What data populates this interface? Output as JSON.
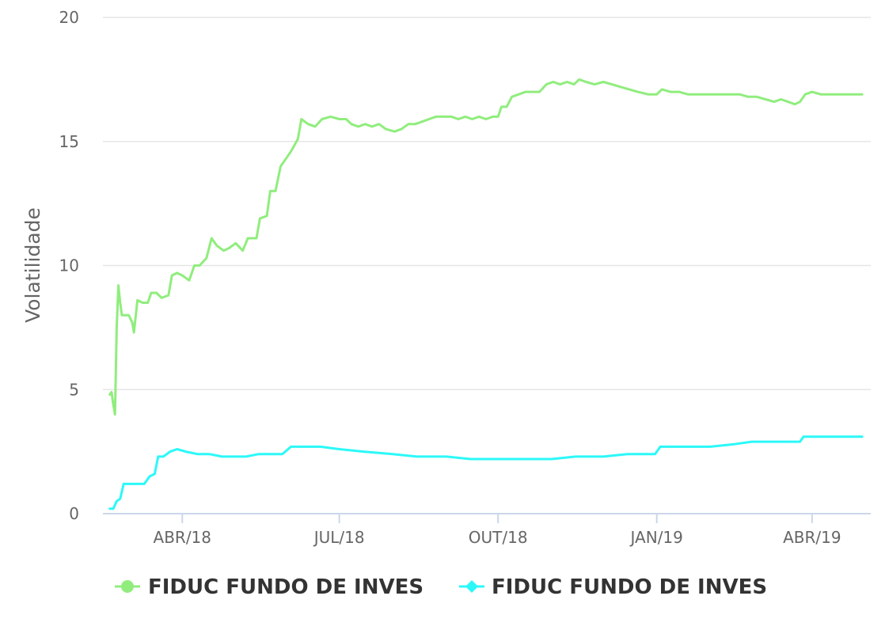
{
  "chart_data": {
    "type": "line",
    "title": "",
    "xlabel": "",
    "ylabel": "Volatilidade",
    "ylim": [
      0,
      20
    ],
    "yticks": [
      0,
      5,
      10,
      15,
      20
    ],
    "xlim": [
      "2018-02-14",
      "2019-05-05"
    ],
    "xticks": [
      {
        "date": "2018-04-01",
        "label": "ABR/18"
      },
      {
        "date": "2018-07-01",
        "label": "JUL/18"
      },
      {
        "date": "2018-10-01",
        "label": "OUT/18"
      },
      {
        "date": "2019-01-01",
        "label": "JAN/19"
      },
      {
        "date": "2019-04-01",
        "label": "ABR/19"
      }
    ],
    "grid": "horizontal",
    "legend_position": "bottom",
    "series": [
      {
        "name": "FIDUC FUNDO DE INVES",
        "color": "#90ed7d",
        "marker": "circle",
        "points": [
          [
            "2018-02-18",
            4.8
          ],
          [
            "2018-02-19",
            4.9
          ],
          [
            "2018-02-20",
            4.4
          ],
          [
            "2018-02-21",
            4.0
          ],
          [
            "2018-02-22",
            7.5
          ],
          [
            "2018-02-23",
            9.2
          ],
          [
            "2018-02-24",
            8.5
          ],
          [
            "2018-02-25",
            8.0
          ],
          [
            "2018-03-01",
            8.0
          ],
          [
            "2018-03-03",
            7.7
          ],
          [
            "2018-03-04",
            7.3
          ],
          [
            "2018-03-06",
            8.6
          ],
          [
            "2018-03-09",
            8.5
          ],
          [
            "2018-03-12",
            8.5
          ],
          [
            "2018-03-14",
            8.9
          ],
          [
            "2018-03-17",
            8.9
          ],
          [
            "2018-03-20",
            8.7
          ],
          [
            "2018-03-24",
            8.8
          ],
          [
            "2018-03-26",
            9.6
          ],
          [
            "2018-03-29",
            9.7
          ],
          [
            "2018-04-01",
            9.6
          ],
          [
            "2018-04-05",
            9.4
          ],
          [
            "2018-04-08",
            10.0
          ],
          [
            "2018-04-11",
            10.0
          ],
          [
            "2018-04-15",
            10.3
          ],
          [
            "2018-04-18",
            11.1
          ],
          [
            "2018-04-21",
            10.8
          ],
          [
            "2018-04-25",
            10.6
          ],
          [
            "2018-04-28",
            10.7
          ],
          [
            "2018-05-02",
            10.9
          ],
          [
            "2018-05-06",
            10.6
          ],
          [
            "2018-05-09",
            11.1
          ],
          [
            "2018-05-14",
            11.1
          ],
          [
            "2018-05-16",
            11.9
          ],
          [
            "2018-05-20",
            12.0
          ],
          [
            "2018-05-22",
            13.0
          ],
          [
            "2018-05-25",
            13.0
          ],
          [
            "2018-05-28",
            14.0
          ],
          [
            "2018-05-31",
            14.3
          ],
          [
            "2018-06-03",
            14.6
          ],
          [
            "2018-06-07",
            15.1
          ],
          [
            "2018-06-09",
            15.9
          ],
          [
            "2018-06-13",
            15.7
          ],
          [
            "2018-06-17",
            15.6
          ],
          [
            "2018-06-21",
            15.9
          ],
          [
            "2018-06-26",
            16.0
          ],
          [
            "2018-07-01",
            15.9
          ],
          [
            "2018-07-05",
            15.9
          ],
          [
            "2018-07-08",
            15.7
          ],
          [
            "2018-07-12",
            15.6
          ],
          [
            "2018-07-16",
            15.7
          ],
          [
            "2018-07-20",
            15.6
          ],
          [
            "2018-07-24",
            15.7
          ],
          [
            "2018-07-28",
            15.5
          ],
          [
            "2018-08-02",
            15.4
          ],
          [
            "2018-08-06",
            15.5
          ],
          [
            "2018-08-10",
            15.7
          ],
          [
            "2018-08-14",
            15.7
          ],
          [
            "2018-08-18",
            15.8
          ],
          [
            "2018-08-22",
            15.9
          ],
          [
            "2018-08-26",
            16.0
          ],
          [
            "2018-08-30",
            16.0
          ],
          [
            "2018-09-04",
            16.0
          ],
          [
            "2018-09-08",
            15.9
          ],
          [
            "2018-09-12",
            16.0
          ],
          [
            "2018-09-16",
            15.9
          ],
          [
            "2018-09-20",
            16.0
          ],
          [
            "2018-09-24",
            15.9
          ],
          [
            "2018-09-28",
            16.0
          ],
          [
            "2018-10-01",
            16.0
          ],
          [
            "2018-10-03",
            16.4
          ],
          [
            "2018-10-06",
            16.4
          ],
          [
            "2018-10-09",
            16.8
          ],
          [
            "2018-10-13",
            16.9
          ],
          [
            "2018-10-17",
            17.0
          ],
          [
            "2018-10-21",
            17.0
          ],
          [
            "2018-10-25",
            17.0
          ],
          [
            "2018-10-29",
            17.3
          ],
          [
            "2018-11-02",
            17.4
          ],
          [
            "2018-11-06",
            17.3
          ],
          [
            "2018-11-10",
            17.4
          ],
          [
            "2018-11-14",
            17.3
          ],
          [
            "2018-11-17",
            17.5
          ],
          [
            "2018-11-21",
            17.4
          ],
          [
            "2018-11-26",
            17.3
          ],
          [
            "2018-12-01",
            17.4
          ],
          [
            "2018-12-06",
            17.3
          ],
          [
            "2018-12-11",
            17.2
          ],
          [
            "2018-12-16",
            17.1
          ],
          [
            "2018-12-21",
            17.0
          ],
          [
            "2018-12-27",
            16.9
          ],
          [
            "2019-01-01",
            16.9
          ],
          [
            "2019-01-04",
            17.1
          ],
          [
            "2019-01-09",
            17.0
          ],
          [
            "2019-01-14",
            17.0
          ],
          [
            "2019-01-19",
            16.9
          ],
          [
            "2019-01-24",
            16.9
          ],
          [
            "2019-01-29",
            16.9
          ],
          [
            "2019-02-03",
            16.9
          ],
          [
            "2019-02-08",
            16.9
          ],
          [
            "2019-02-13",
            16.9
          ],
          [
            "2019-02-18",
            16.9
          ],
          [
            "2019-02-23",
            16.8
          ],
          [
            "2019-02-28",
            16.8
          ],
          [
            "2019-03-05",
            16.7
          ],
          [
            "2019-03-10",
            16.6
          ],
          [
            "2019-03-14",
            16.7
          ],
          [
            "2019-03-18",
            16.6
          ],
          [
            "2019-03-22",
            16.5
          ],
          [
            "2019-03-25",
            16.6
          ],
          [
            "2019-03-28",
            16.9
          ],
          [
            "2019-04-01",
            17.0
          ],
          [
            "2019-04-06",
            16.9
          ],
          [
            "2019-04-11",
            16.9
          ],
          [
            "2019-04-16",
            16.9
          ],
          [
            "2019-04-21",
            16.9
          ],
          [
            "2019-04-26",
            16.9
          ],
          [
            "2019-04-30",
            16.9
          ]
        ]
      },
      {
        "name": "FIDUC FUNDO DE INVES",
        "color": "#2cf8f8",
        "marker": "diamond",
        "points": [
          [
            "2018-02-18",
            0.2
          ],
          [
            "2018-02-20",
            0.2
          ],
          [
            "2018-02-22",
            0.5
          ],
          [
            "2018-02-24",
            0.6
          ],
          [
            "2018-02-26",
            1.2
          ],
          [
            "2018-03-01",
            1.2
          ],
          [
            "2018-03-04",
            1.2
          ],
          [
            "2018-03-07",
            1.2
          ],
          [
            "2018-03-10",
            1.2
          ],
          [
            "2018-03-13",
            1.5
          ],
          [
            "2018-03-16",
            1.6
          ],
          [
            "2018-03-18",
            2.3
          ],
          [
            "2018-03-21",
            2.3
          ],
          [
            "2018-03-25",
            2.5
          ],
          [
            "2018-03-29",
            2.6
          ],
          [
            "2018-04-03",
            2.5
          ],
          [
            "2018-04-10",
            2.4
          ],
          [
            "2018-04-17",
            2.4
          ],
          [
            "2018-04-24",
            2.3
          ],
          [
            "2018-05-01",
            2.3
          ],
          [
            "2018-05-08",
            2.3
          ],
          [
            "2018-05-15",
            2.4
          ],
          [
            "2018-05-22",
            2.4
          ],
          [
            "2018-05-29",
            2.4
          ],
          [
            "2018-06-03",
            2.7
          ],
          [
            "2018-06-10",
            2.7
          ],
          [
            "2018-06-20",
            2.7
          ],
          [
            "2018-07-01",
            2.6
          ],
          [
            "2018-07-15",
            2.5
          ],
          [
            "2018-08-01",
            2.4
          ],
          [
            "2018-08-15",
            2.3
          ],
          [
            "2018-09-01",
            2.3
          ],
          [
            "2018-09-15",
            2.2
          ],
          [
            "2018-10-01",
            2.2
          ],
          [
            "2018-10-15",
            2.2
          ],
          [
            "2018-11-01",
            2.2
          ],
          [
            "2018-11-15",
            2.3
          ],
          [
            "2018-12-01",
            2.3
          ],
          [
            "2018-12-15",
            2.4
          ],
          [
            "2018-12-31",
            2.4
          ],
          [
            "2019-01-03",
            2.7
          ],
          [
            "2019-01-20",
            2.7
          ],
          [
            "2019-02-01",
            2.7
          ],
          [
            "2019-02-15",
            2.8
          ],
          [
            "2019-02-25",
            2.9
          ],
          [
            "2019-03-10",
            2.9
          ],
          [
            "2019-03-25",
            2.9
          ],
          [
            "2019-03-27",
            3.1
          ],
          [
            "2019-04-05",
            3.1
          ],
          [
            "2019-04-20",
            3.1
          ],
          [
            "2019-04-30",
            3.1
          ]
        ]
      }
    ]
  }
}
